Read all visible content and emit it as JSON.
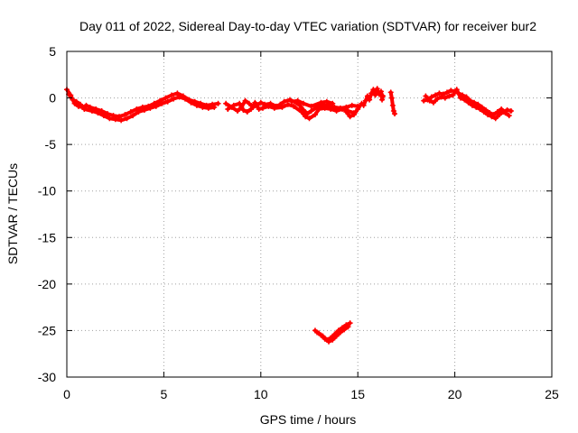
{
  "chart_data": {
    "type": "scatter",
    "title": "Day 011 of 2022, Sidereal Day-to-day VTEC variation (SDTVAR) for receiver bur2",
    "xlabel": "GPS time / hours",
    "ylabel": "SDTVAR / TECUs",
    "xlim": [
      0,
      25
    ],
    "ylim": [
      -30,
      5
    ],
    "xticks": [
      0,
      5,
      10,
      15,
      20,
      25
    ],
    "yticks": [
      5,
      0,
      -5,
      -10,
      -15,
      -20,
      -25,
      -30
    ],
    "grid": true,
    "series": [
      {
        "name": "SDTVAR",
        "color": "#ff0000",
        "marker": "plus",
        "segments": [
          [
            [
              0.0,
              0.9
            ],
            [
              0.2,
              0.3
            ],
            [
              0.4,
              -0.6
            ],
            [
              0.6,
              -0.9
            ],
            [
              0.8,
              -1.0
            ],
            [
              1.0,
              -0.8
            ],
            [
              1.2,
              -1.0
            ],
            [
              1.5,
              -1.2
            ],
            [
              1.8,
              -1.4
            ],
            [
              2.1,
              -1.7
            ],
            [
              2.4,
              -1.9
            ],
            [
              2.7,
              -2.0
            ],
            [
              3.0,
              -1.8
            ],
            [
              3.3,
              -1.5
            ],
            [
              3.6,
              -1.2
            ],
            [
              3.9,
              -1.0
            ],
            [
              4.2,
              -0.9
            ],
            [
              4.5,
              -0.6
            ],
            [
              4.8,
              -0.3
            ],
            [
              5.1,
              0.0
            ],
            [
              5.4,
              0.3
            ],
            [
              5.7,
              0.5
            ],
            [
              6.0,
              0.2
            ],
            [
              6.3,
              -0.2
            ],
            [
              6.6,
              -0.4
            ],
            [
              6.9,
              -0.6
            ],
            [
              7.2,
              -0.8
            ],
            [
              7.5,
              -0.7
            ],
            [
              7.8,
              -0.6
            ]
          ],
          [
            [
              0.1,
              0.4
            ],
            [
              0.3,
              -0.2
            ],
            [
              0.5,
              -0.4
            ],
            [
              0.7,
              -0.7
            ],
            [
              0.9,
              -1.2
            ],
            [
              1.3,
              -1.4
            ],
            [
              1.6,
              -1.6
            ],
            [
              1.9,
              -1.9
            ],
            [
              2.2,
              -2.2
            ],
            [
              2.5,
              -2.3
            ],
            [
              2.8,
              -2.4
            ],
            [
              3.1,
              -2.2
            ],
            [
              3.4,
              -1.9
            ],
            [
              3.7,
              -1.5
            ],
            [
              4.0,
              -1.3
            ],
            [
              4.3,
              -1.1
            ],
            [
              4.6,
              -0.9
            ],
            [
              4.9,
              -0.6
            ],
            [
              5.2,
              -0.4
            ],
            [
              5.5,
              -0.1
            ],
            [
              5.8,
              0.1
            ],
            [
              6.1,
              -0.1
            ],
            [
              6.4,
              -0.5
            ],
            [
              6.7,
              -0.8
            ],
            [
              7.0,
              -1.0
            ],
            [
              7.3,
              -1.1
            ],
            [
              7.6,
              -1.0
            ]
          ],
          [
            [
              8.2,
              -0.6
            ],
            [
              8.5,
              -1.0
            ],
            [
              8.8,
              -1.4
            ],
            [
              9.0,
              -1.0
            ],
            [
              9.2,
              -0.3
            ],
            [
              9.4,
              -0.6
            ],
            [
              9.6,
              -1.0
            ],
            [
              9.8,
              -0.8
            ],
            [
              10.0,
              -0.5
            ],
            [
              10.2,
              -0.7
            ],
            [
              10.5,
              -0.6
            ],
            [
              10.8,
              -0.9
            ],
            [
              11.0,
              -0.7
            ],
            [
              11.2,
              -0.4
            ],
            [
              11.5,
              -0.2
            ],
            [
              11.8,
              -0.5
            ],
            [
              12.0,
              -0.8
            ],
            [
              12.2,
              -1.3
            ],
            [
              12.4,
              -1.7
            ],
            [
              12.6,
              -1.4
            ],
            [
              12.9,
              -1.0
            ],
            [
              13.2,
              -0.8
            ],
            [
              13.5,
              -0.8
            ],
            [
              13.8,
              -1.0
            ],
            [
              14.1,
              -1.1
            ],
            [
              14.4,
              -1.0
            ],
            [
              14.7,
              -0.8
            ],
            [
              15.0,
              -0.9
            ]
          ],
          [
            [
              8.3,
              -1.2
            ],
            [
              8.6,
              -0.8
            ],
            [
              8.9,
              -0.6
            ],
            [
              9.1,
              -1.3
            ],
            [
              9.3,
              -1.5
            ],
            [
              9.5,
              -1.2
            ],
            [
              9.7,
              -0.5
            ],
            [
              9.9,
              -1.2
            ],
            [
              10.1,
              -1.1
            ],
            [
              10.4,
              -0.9
            ],
            [
              10.7,
              -1.1
            ],
            [
              11.1,
              -1.0
            ],
            [
              11.4,
              -0.7
            ],
            [
              11.7,
              -0.9
            ],
            [
              12.1,
              -1.5
            ],
            [
              12.3,
              -2.0
            ],
            [
              12.5,
              -2.2
            ],
            [
              12.8,
              -1.8
            ],
            [
              13.0,
              -1.2
            ],
            [
              13.3,
              -1.1
            ],
            [
              13.6,
              -1.2
            ],
            [
              13.9,
              -1.4
            ],
            [
              14.2,
              -1.2
            ],
            [
              14.5,
              -1.4
            ],
            [
              14.8,
              -1.6
            ]
          ],
          [
            [
              11.6,
              -0.4
            ],
            [
              11.9,
              -0.3
            ],
            [
              12.2,
              -0.6
            ],
            [
              12.6,
              -0.9
            ],
            [
              13.1,
              -0.5
            ],
            [
              13.4,
              -0.4
            ],
            [
              13.7,
              -0.6
            ]
          ],
          [
            [
              14.4,
              -1.5
            ],
            [
              14.6,
              -2.0
            ],
            [
              14.8,
              -1.8
            ],
            [
              15.0,
              -1.2
            ],
            [
              15.2,
              -0.6
            ],
            [
              15.3,
              -0.8
            ],
            [
              15.4,
              -0.3
            ],
            [
              15.5,
              0.2
            ],
            [
              15.6,
              -0.2
            ],
            [
              15.7,
              0.5
            ],
            [
              15.8,
              0.9
            ],
            [
              15.9,
              0.3
            ],
            [
              16.0,
              1.0
            ],
            [
              16.1,
              0.4
            ],
            [
              16.2,
              0.7
            ],
            [
              16.25,
              -0.2
            ],
            [
              16.3,
              0.2
            ]
          ],
          [
            [
              16.7,
              0.6
            ],
            [
              16.75,
              0.0
            ],
            [
              16.8,
              -0.8
            ],
            [
              16.85,
              -1.4
            ],
            [
              16.9,
              -1.7
            ]
          ],
          [
            [
              18.4,
              -0.3
            ],
            [
              18.6,
              -0.2
            ],
            [
              18.8,
              0.1
            ],
            [
              19.0,
              0.3
            ],
            [
              19.2,
              0.5
            ],
            [
              19.4,
              0.4
            ],
            [
              19.6,
              0.6
            ],
            [
              19.8,
              0.8
            ],
            [
              20.0,
              0.7
            ],
            [
              20.2,
              0.5
            ],
            [
              20.4,
              0.3
            ],
            [
              20.6,
              0.1
            ],
            [
              20.8,
              -0.3
            ],
            [
              21.0,
              -0.5
            ],
            [
              21.2,
              -0.7
            ],
            [
              21.4,
              -1.0
            ],
            [
              21.6,
              -1.3
            ],
            [
              21.8,
              -1.6
            ],
            [
              22.0,
              -1.8
            ],
            [
              22.2,
              -1.5
            ],
            [
              22.4,
              -1.2
            ],
            [
              22.6,
              -1.6
            ],
            [
              22.8,
              -1.9
            ]
          ],
          [
            [
              18.5,
              0.2
            ],
            [
              18.7,
              -0.3
            ],
            [
              18.9,
              -0.5
            ],
            [
              19.1,
              -0.1
            ],
            [
              19.3,
              0.1
            ],
            [
              19.5,
              0.0
            ],
            [
              19.7,
              0.2
            ],
            [
              19.9,
              0.3
            ],
            [
              20.1,
              0.9
            ],
            [
              20.3,
              0.0
            ],
            [
              20.5,
              -0.2
            ],
            [
              20.7,
              -0.5
            ],
            [
              20.9,
              -0.8
            ],
            [
              21.1,
              -1.0
            ],
            [
              21.3,
              -1.2
            ],
            [
              21.5,
              -1.5
            ],
            [
              21.7,
              -1.8
            ],
            [
              21.9,
              -2.0
            ],
            [
              22.1,
              -2.2
            ],
            [
              22.3,
              -1.8
            ],
            [
              22.5,
              -1.5
            ],
            [
              22.7,
              -1.3
            ],
            [
              22.9,
              -1.4
            ]
          ],
          [
            [
              12.8,
              -25.0
            ],
            [
              13.0,
              -25.3
            ],
            [
              13.2,
              -25.6
            ],
            [
              13.4,
              -26.0
            ],
            [
              13.6,
              -25.8
            ],
            [
              13.8,
              -25.4
            ],
            [
              14.0,
              -25.0
            ],
            [
              14.2,
              -24.7
            ],
            [
              14.4,
              -24.4
            ],
            [
              14.6,
              -24.2
            ]
          ],
          [
            [
              12.9,
              -25.2
            ],
            [
              13.1,
              -25.5
            ],
            [
              13.3,
              -25.9
            ],
            [
              13.5,
              -26.2
            ],
            [
              13.7,
              -26.0
            ],
            [
              13.9,
              -25.6
            ],
            [
              14.1,
              -25.2
            ],
            [
              14.3,
              -24.9
            ],
            [
              14.5,
              -24.6
            ]
          ]
        ]
      }
    ]
  }
}
